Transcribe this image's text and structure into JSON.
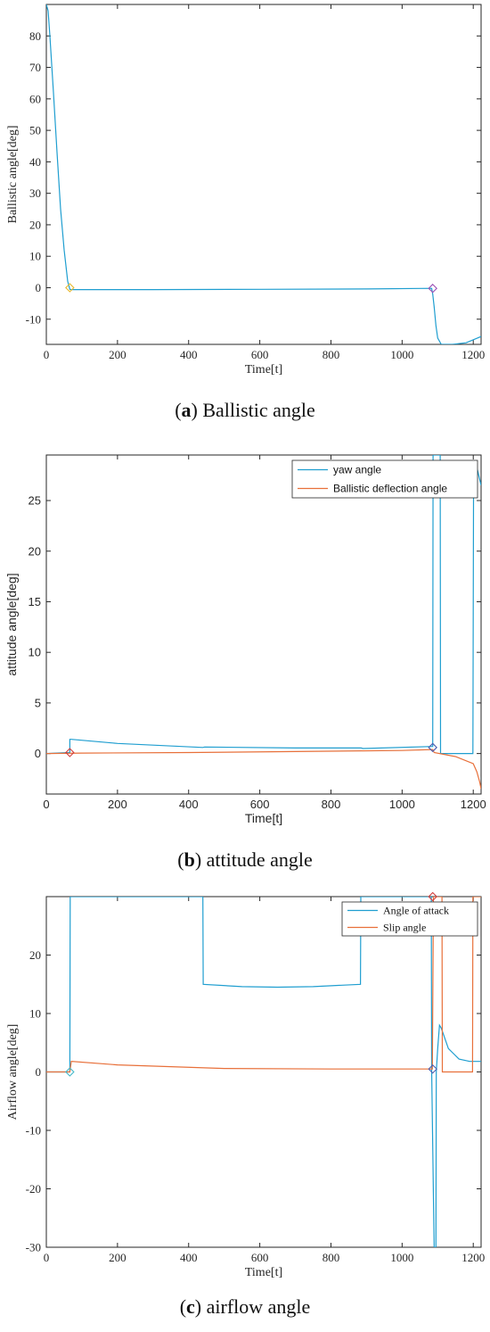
{
  "chart_data": [
    {
      "type": "line",
      "caption_letter": "a",
      "caption_text": "Ballistic angle",
      "xlabel": "Time[t]",
      "ylabel": "Ballistic angle[deg]",
      "xlim": [
        0,
        1222
      ],
      "ylim": [
        -18,
        90
      ],
      "xticks": [
        0,
        200,
        400,
        600,
        800,
        1000,
        1200
      ],
      "yticks": [
        -10,
        0,
        10,
        20,
        30,
        40,
        50,
        60,
        70,
        80
      ],
      "legend": [],
      "series": [
        {
          "color": "#1f9ed0",
          "x": [
            0,
            5,
            10,
            20,
            30,
            40,
            50,
            60,
            66,
            70,
            300,
            600,
            900,
            1083,
            1086,
            1090,
            1095,
            1100,
            1110,
            1140,
            1180,
            1222
          ],
          "y": [
            90,
            88,
            80,
            62,
            43,
            25,
            12,
            2,
            -0.5,
            -0.6,
            -0.6,
            -0.5,
            -0.4,
            -0.2,
            -2,
            -6,
            -12,
            -16,
            -18,
            -18,
            -17.5,
            -15.5
          ]
        }
      ],
      "markers": [
        {
          "x": 66,
          "y": 0,
          "color": "#e8b82c"
        },
        {
          "x": 1086,
          "y": -0.2,
          "color": "#9a4fb5"
        }
      ]
    },
    {
      "type": "line",
      "caption_letter": "b",
      "caption_text": "attitude angle",
      "xlabel": "Time[t]",
      "ylabel": "attitude angle[deg]",
      "xlim": [
        0,
        1222
      ],
      "ylim": [
        -4,
        29.5
      ],
      "xticks": [
        0,
        200,
        400,
        600,
        800,
        1000,
        1200
      ],
      "yticks": [
        0,
        5,
        10,
        15,
        20,
        25
      ],
      "legend": [
        "yaw angle",
        "Ballistic deflection angle"
      ],
      "series": [
        {
          "color": "#1f9ed0",
          "x": [
            0,
            66,
            66,
            70,
            200,
            440,
            445,
            700,
            885,
            890,
            1086,
            1087,
            1090,
            1092,
            1100,
            1107,
            1108,
            1112,
            1180,
            1199,
            1201,
            1205,
            1212,
            1222
          ],
          "y": [
            0,
            0.1,
            1.4,
            1.4,
            1.0,
            0.6,
            0.65,
            0.55,
            0.55,
            0.5,
            0.7,
            29.5,
            29.5,
            29.5,
            29.5,
            29.5,
            0,
            0,
            0,
            0,
            28.5,
            28.5,
            28,
            26.5
          ]
        },
        {
          "color": "#e8703a",
          "x": [
            0,
            100,
            400,
            700,
            1000,
            1086,
            1090,
            1150,
            1200,
            1210,
            1218,
            1222
          ],
          "y": [
            0,
            0.05,
            0.1,
            0.2,
            0.3,
            0.4,
            0.1,
            -0.3,
            -1,
            -1.8,
            -2.8,
            -3.5
          ]
        }
      ],
      "markers": [
        {
          "x": 66,
          "y": 0.1,
          "color": "#d23c3c"
        },
        {
          "x": 1086,
          "y": 0.6,
          "color": "#4a5db0"
        }
      ]
    },
    {
      "type": "line",
      "caption_letter": "c",
      "caption_text": "airflow angle",
      "xlabel": "Time[t]",
      "ylabel": "Airflow angle[deg]",
      "xlim": [
        0,
        1222
      ],
      "ylim": [
        -30,
        30
      ],
      "xticks": [
        0,
        200,
        400,
        600,
        800,
        1000,
        1200
      ],
      "yticks": [
        -30,
        -20,
        -10,
        0,
        10,
        20
      ],
      "legend": [
        "Angle of attack",
        "Slip angle"
      ],
      "series": [
        {
          "color": "#1f9ed0",
          "x": [
            0,
            66,
            67,
            440,
            441,
            550,
            650,
            750,
            883,
            884,
            1082,
            1083,
            1090,
            1092,
            1095,
            1096,
            1100,
            1105,
            1110,
            1130,
            1160,
            1190,
            1222
          ],
          "y": [
            0,
            0,
            30,
            30,
            15,
            14.6,
            14.5,
            14.6,
            15,
            30,
            30,
            0.5,
            -30,
            -30,
            -30,
            0,
            4,
            8,
            7.5,
            4,
            2.2,
            1.8,
            1.8
          ]
        },
        {
          "color": "#e8703a",
          "x": [
            0,
            66,
            70,
            200,
            500,
            800,
            1085,
            1088,
            1100,
            1102,
            1112,
            1113,
            1198,
            1199,
            1222
          ],
          "y": [
            0,
            0,
            1.8,
            1.2,
            0.6,
            0.5,
            0.5,
            30,
            30,
            30,
            30,
            0,
            0,
            30,
            30
          ]
        }
      ],
      "markers": [
        {
          "x": 66,
          "y": 0,
          "color": "#42b8c8"
        },
        {
          "x": 1086,
          "y": 30,
          "color": "#d23c3c"
        },
        {
          "x": 1086,
          "y": 0.5,
          "color": "#4a5db0"
        }
      ]
    }
  ]
}
